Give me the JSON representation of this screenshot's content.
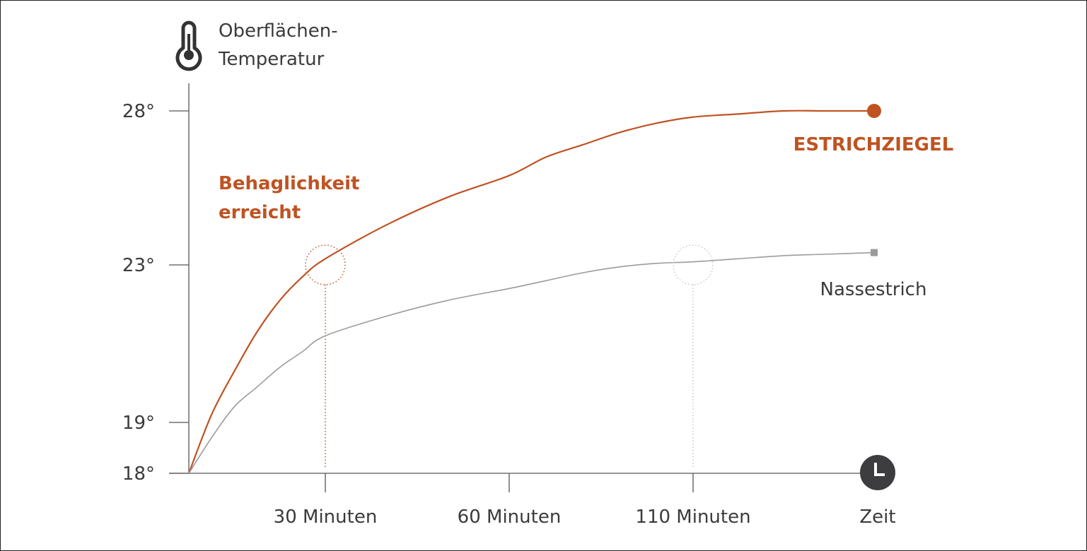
{
  "chart_data": {
    "type": "line",
    "ylabel": [
      "Oberflächen-",
      "Temperatur"
    ],
    "xlabel": "Zeit",
    "y_ticks": [
      {
        "value": 18,
        "label": "18°"
      },
      {
        "value": 19,
        "label": "19°"
      },
      {
        "value": 23,
        "label": "23°"
      },
      {
        "value": 28,
        "label": "28°"
      }
    ],
    "x_ticks": [
      {
        "value": 30,
        "label": "30 Minuten"
      },
      {
        "value": 60,
        "label": "60 Minuten"
      },
      {
        "value": 110,
        "label": "110 Minuten"
      }
    ],
    "xlim": [
      0,
      150
    ],
    "ylim": [
      18,
      28
    ],
    "series": [
      {
        "name": "ESTRICHZIEGEL",
        "color": "#bf5322",
        "x": [
          0,
          5,
          10,
          15,
          20,
          25,
          30,
          40,
          50,
          60,
          70,
          80,
          90,
          100,
          110,
          120,
          130,
          140,
          150
        ],
        "y": [
          18,
          19.2,
          20.3,
          21.3,
          22.1,
          22.7,
          23.2,
          24.3,
          25.2,
          25.9,
          26.5,
          26.9,
          27.3,
          27.6,
          27.8,
          27.9,
          28.0,
          28.0,
          28.0
        ]
      },
      {
        "name": "Nassestrich",
        "color": "#9b9b9b",
        "x": [
          0,
          5,
          10,
          15,
          20,
          25,
          30,
          40,
          50,
          60,
          70,
          80,
          90,
          100,
          110,
          120,
          130,
          140,
          150
        ],
        "y": [
          18,
          18.7,
          19.4,
          19.9,
          20.4,
          20.8,
          21.2,
          21.7,
          22.1,
          22.4,
          22.6,
          22.8,
          22.95,
          23.05,
          23.1,
          23.2,
          23.3,
          23.35,
          23.4
        ]
      }
    ],
    "annotations": [
      {
        "text": [
          "Behaglichkeit",
          "erreicht"
        ],
        "color": "#bf5322"
      },
      {
        "series": "ESTRICHZIEGEL",
        "x": 30,
        "y": 23,
        "color": "#bf5322",
        "marker": "dotted-circle"
      },
      {
        "series": "Nassestrich",
        "x": 110,
        "y": 23,
        "color": "#c8c8c8",
        "marker": "dotted-circle"
      }
    ],
    "grid": false,
    "icons": {
      "y_axis": "thermometer-icon",
      "x_axis": "clock-icon"
    }
  }
}
